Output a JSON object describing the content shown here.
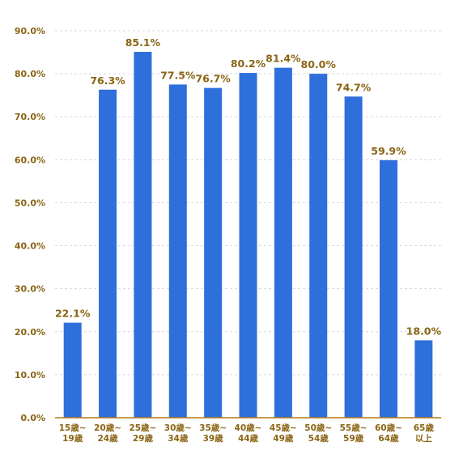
{
  "chart_data": {
    "type": "bar",
    "categories": [
      [
        "15歳~",
        "19歳"
      ],
      [
        "20歳~",
        "24歳"
      ],
      [
        "25歳~",
        "29歳"
      ],
      [
        "30歳~",
        "34歳"
      ],
      [
        "35歳~",
        "39歳"
      ],
      [
        "40歳~",
        "44歳"
      ],
      [
        "45歳~",
        "49歳"
      ],
      [
        "50歳~",
        "54歳"
      ],
      [
        "55歳~",
        "59歳"
      ],
      [
        "60歳~",
        "64歳"
      ],
      [
        "65歳",
        "以上"
      ]
    ],
    "values": [
      22.1,
      76.3,
      85.1,
      77.5,
      76.7,
      80.2,
      81.4,
      80.0,
      74.7,
      59.9,
      18.0
    ],
    "value_labels": [
      "22.1%",
      "76.3%",
      "85.1%",
      "77.5%",
      "76.7%",
      "80.2%",
      "81.4%",
      "80.0%",
      "74.7%",
      "59.9%",
      "18.0%"
    ],
    "ylim": [
      0,
      90
    ],
    "yticks": [
      0,
      10,
      20,
      30,
      40,
      50,
      60,
      70,
      80,
      90
    ],
    "ytick_labels": [
      "0.0%",
      "10.0%",
      "20.0%",
      "30.0%",
      "40.0%",
      "50.0%",
      "60.0%",
      "70.0%",
      "80.0%",
      "90.0%"
    ],
    "grid": true,
    "title": "",
    "xlabel": "",
    "ylabel": "",
    "colors": {
      "bar": "#2f6fdc",
      "label": "#8a6414",
      "axis": "#b07a14",
      "grid": "#d7d7d7"
    }
  }
}
